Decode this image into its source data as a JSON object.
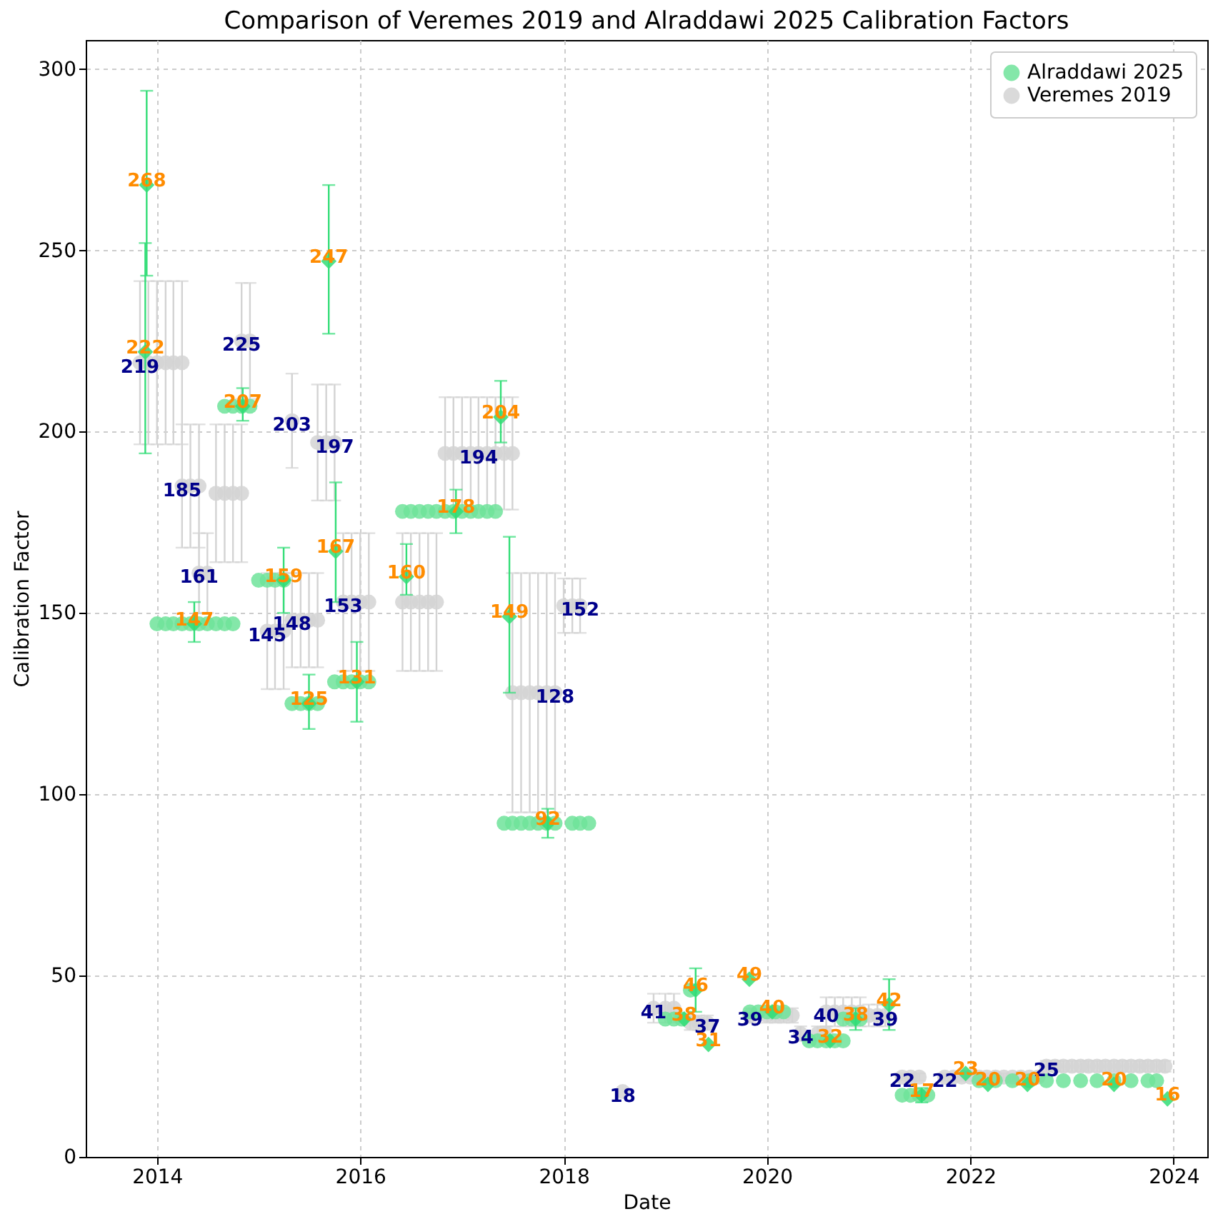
{
  "chart_data": {
    "type": "scatter",
    "title": "Comparison of Veremes 2019 and Alraddawi 2025 Calibration Factors",
    "xlabel": "Date",
    "ylabel": "Calibration Factor",
    "xlim": [
      "2013-04-20",
      "2024-05-01"
    ],
    "xticks": [
      "2014",
      "2016",
      "2018",
      "2020",
      "2022",
      "2024"
    ],
    "ylim": [
      0,
      308
    ],
    "yticks": [
      0,
      50,
      100,
      150,
      200,
      250,
      300
    ],
    "grid": true,
    "legend": "top right",
    "series": [
      {
        "name": "Veremes 2019",
        "color": "#d3d3d3",
        "marker": "circle",
        "x": [
          "2013-11",
          "2013-12",
          "2014-01",
          "2014-02",
          "2014-03",
          "2014-04",
          "2014-04",
          "2014-05",
          "2014-06",
          "2014-06",
          "2014-07",
          "2014-08",
          "2014-09",
          "2014-10",
          "2014-11",
          "2014-11",
          "2014-12",
          "2015-05",
          "2015-08",
          "2015-09",
          "2015-10",
          "2015-02",
          "2015-03",
          "2015-04",
          "2015-05",
          "2015-06",
          "2015-07",
          "2015-08",
          "2015-11",
          "2015-12",
          "2016-01",
          "2016-02",
          "2016-06",
          "2016-07",
          "2016-08",
          "2016-09",
          "2016-10",
          "2016-11",
          "2016-12",
          "2017-01",
          "2017-02",
          "2017-03",
          "2017-04",
          "2017-05",
          "2017-06",
          "2017-07",
          "2017-07",
          "2017-08",
          "2017-09",
          "2017-10",
          "2017-11",
          "2017-12",
          "2018-01",
          "2018-02",
          "2018-03",
          "2018-08",
          "2018-11-20",
          "2019-01",
          "2019-02",
          "2019-04",
          "2019-05",
          "2019-06",
          "2019-11",
          "2020-01",
          "2020-02",
          "2020-03",
          "2020-04",
          "2020-05",
          "2020-07",
          "2020-08",
          "2020-08",
          "2020-09",
          "2020-10",
          "2020-11",
          "2020-12",
          "2021-01",
          "2021-02",
          "2021-03",
          "2021-05",
          "2021-06",
          "2021-07",
          "2021-10",
          "2021-11",
          "2021-12",
          "2022-01",
          "2022-02",
          "2022-03",
          "2022-04",
          "2022-05",
          "2022-06",
          "2022-07",
          "2022-08",
          "2022-09",
          "2022-10",
          "2022-11",
          "2022-12",
          "2023-01",
          "2023-02",
          "2023-03",
          "2023-04",
          "2023-05",
          "2023-06",
          "2023-07",
          "2023-08",
          "2023-09",
          "2023-10",
          "2023-11",
          "2023-12"
        ],
        "values": [
          219,
          219,
          219,
          219,
          219,
          219,
          185,
          185,
          185,
          161,
          161,
          183,
          183,
          183,
          183,
          225,
          225,
          203,
          197,
          197,
          197,
          145,
          145,
          145,
          148,
          148,
          148,
          148,
          153,
          153,
          153,
          153,
          153,
          153,
          153,
          153,
          153,
          194,
          194,
          194,
          194,
          194,
          194,
          194,
          194,
          194,
          128,
          128,
          128,
          128,
          128,
          128,
          152,
          152,
          152,
          18,
          41,
          41,
          41,
          37,
          37,
          37,
          39,
          39,
          39,
          39,
          39,
          34,
          34,
          34,
          40,
          40,
          40,
          40,
          40,
          39,
          39,
          39,
          22,
          22,
          22,
          22,
          22,
          22,
          22,
          22,
          22,
          22,
          22,
          22,
          22,
          22,
          22,
          25,
          25,
          25,
          25,
          25,
          25,
          25,
          25,
          25,
          25,
          25,
          25,
          25,
          25,
          25
        ],
        "errors": [
          22.5,
          22.5,
          22.5,
          22.5,
          22.5,
          22.5,
          17,
          17,
          17,
          11,
          11,
          19,
          19,
          19,
          19,
          16,
          16,
          13,
          16,
          16,
          16,
          16,
          16,
          16,
          13,
          13,
          13,
          13,
          19,
          19,
          19,
          19,
          19,
          19,
          19,
          19,
          19,
          15.5,
          15.5,
          15.5,
          15.5,
          15.5,
          15.5,
          15.5,
          15.5,
          15.5,
          33,
          33,
          33,
          33,
          33,
          33,
          7.5,
          7.5,
          7.5,
          null,
          4,
          4,
          4,
          2,
          2,
          2,
          2,
          2,
          2,
          2,
          2,
          2,
          2,
          2,
          4,
          4,
          4,
          4,
          4,
          3,
          3,
          3,
          1,
          1,
          1,
          1,
          1,
          1,
          1,
          1,
          1,
          1,
          1,
          1,
          1,
          1,
          1,
          1.5,
          1.5,
          1.5,
          1.5,
          1.5,
          1.5,
          1.5,
          1.5,
          1.5,
          1.5,
          1.5,
          1.5,
          1.5,
          1.5,
          1.5
        ],
        "value_labels": [
          "219",
          null,
          null,
          null,
          null,
          null,
          "185",
          null,
          null,
          "161",
          null,
          null,
          null,
          null,
          null,
          "225",
          null,
          "203",
          null,
          null,
          "197",
          "145",
          null,
          null,
          "148",
          null,
          null,
          null,
          "153",
          null,
          null,
          null,
          null,
          null,
          null,
          null,
          null,
          null,
          null,
          null,
          null,
          "194",
          null,
          null,
          null,
          null,
          null,
          null,
          null,
          null,
          null,
          "128",
          null,
          null,
          "152",
          "18",
          "41",
          null,
          null,
          null,
          null,
          "37",
          "39",
          null,
          null,
          null,
          null,
          "34",
          null,
          null,
          "40",
          null,
          null,
          null,
          null,
          null,
          null,
          "39",
          "22",
          null,
          null,
          "22",
          null,
          null,
          null,
          null,
          null,
          null,
          null,
          null,
          null,
          null,
          null,
          "25",
          null,
          null,
          null,
          null,
          null,
          null,
          null,
          null,
          null,
          null,
          null,
          null,
          null,
          null
        ]
      },
      {
        "name": "Alraddawi 2025",
        "color": "#6ee39a",
        "marker": "circle",
        "x": [
          "2014-01",
          "2014-02",
          "2014-03",
          "2014-04",
          "2014-05",
          "2014-06",
          "2014-07",
          "2014-08",
          "2014-09",
          "2014-10",
          "2014-09",
          "2014-10",
          "2014-11",
          "2014-12",
          "2015-01",
          "2015-02",
          "2015-03",
          "2015-04",
          "2015-05",
          "2015-06",
          "2015-07",
          "2015-08",
          "2015-10",
          "2015-11",
          "2015-12",
          "2016-01",
          "2016-02",
          "2016-06",
          "2016-07",
          "2016-08",
          "2016-09",
          "2016-10",
          "2016-11",
          "2016-12",
          "2017-01",
          "2017-02",
          "2017-03",
          "2017-04",
          "2017-05",
          "2017-06",
          "2017-07",
          "2017-08",
          "2017-09",
          "2017-10",
          "2017-11",
          "2017-12",
          "2018-02",
          "2018-03",
          "2018-04",
          "2019-01",
          "2019-02",
          "2019-03",
          "2019-04",
          "2019-11",
          "2019-12",
          "2020-01",
          "2020-02",
          "2020-03",
          "2020-06",
          "2020-07",
          "2020-08",
          "2020-09",
          "2020-10",
          "2020-10",
          "2020-11",
          "2020-12",
          "2021-05",
          "2021-06",
          "2021-07",
          "2021-08",
          "2022-02",
          "2022-04",
          "2022-06",
          "2022-08",
          "2022-10",
          "2022-12",
          "2023-02",
          "2023-04",
          "2023-06",
          "2023-08",
          "2023-10",
          "2023-11"
        ],
        "values": [
          147,
          147,
          147,
          147,
          147,
          147,
          147,
          147,
          147,
          147,
          207,
          207,
          207,
          207,
          159,
          159,
          159,
          159,
          125,
          125,
          125,
          125,
          131,
          131,
          131,
          131,
          131,
          178,
          178,
          178,
          178,
          178,
          178,
          178,
          178,
          178,
          178,
          178,
          178,
          92,
          92,
          92,
          92,
          92,
          92,
          92,
          92,
          92,
          92,
          38,
          38,
          38,
          46,
          40,
          40,
          40,
          40,
          40,
          32,
          32,
          32,
          32,
          32,
          38,
          38,
          38,
          17,
          17,
          17,
          17,
          21,
          21,
          21,
          21,
          21,
          21,
          21,
          21,
          21,
          21,
          21,
          21
        ]
      },
      {
        "color": "#33dd77",
        "marker": "diamond",
        "x": [
          "2013-11-20",
          "2013-11-25",
          "2014-05-15",
          "2014-11-05",
          "2015-04-01",
          "2015-07-01",
          "2015-09-10",
          "2015-10-05",
          "2015-12-20",
          "2016-06-15",
          "2016-12-10",
          "2017-05-20",
          "2017-06-20",
          "2017-11-05",
          "2019-03-10",
          "2019-04-20",
          "2019-06-05",
          "2019-10-30",
          "2020-01-20",
          "2020-08-15",
          "2020-11-15",
          "2021-03-15",
          "2021-07-10",
          "2021-12-15",
          "2022-03-05",
          "2022-07-25",
          "2023-06-01",
          "2023-12-10"
        ],
        "values": [
          222,
          268,
          147,
          207,
          159,
          125,
          247,
          167,
          131,
          160,
          178,
          204,
          149,
          92,
          38,
          46,
          31,
          49,
          40,
          32,
          38,
          42,
          17,
          23,
          20,
          20,
          20,
          16
        ],
        "errors": [
          [
            194,
            252
          ],
          [
            243,
            294
          ],
          [
            142,
            153
          ],
          [
            203,
            212
          ],
          [
            150,
            168
          ],
          [
            118,
            133
          ],
          [
            227,
            268
          ],
          [
            153,
            186
          ],
          [
            120,
            142
          ],
          [
            155,
            169
          ],
          [
            172,
            184
          ],
          [
            197,
            214
          ],
          [
            128,
            171
          ],
          [
            88,
            96
          ],
          null,
          [
            40,
            52
          ],
          null,
          null,
          null,
          null,
          [
            35,
            41
          ],
          [
            35,
            49
          ],
          [
            15,
            19
          ],
          null,
          null,
          null,
          null,
          null
        ],
        "value_labels": [
          "222",
          "268",
          "147",
          "207",
          "159",
          "125",
          "247",
          "167",
          "131",
          "160",
          "178",
          "204",
          "149",
          "92",
          "38",
          "46",
          "31",
          "49",
          "40",
          "32",
          "38",
          "42",
          "17",
          "23",
          "20",
          "20",
          "20",
          "16"
        ]
      }
    ]
  }
}
